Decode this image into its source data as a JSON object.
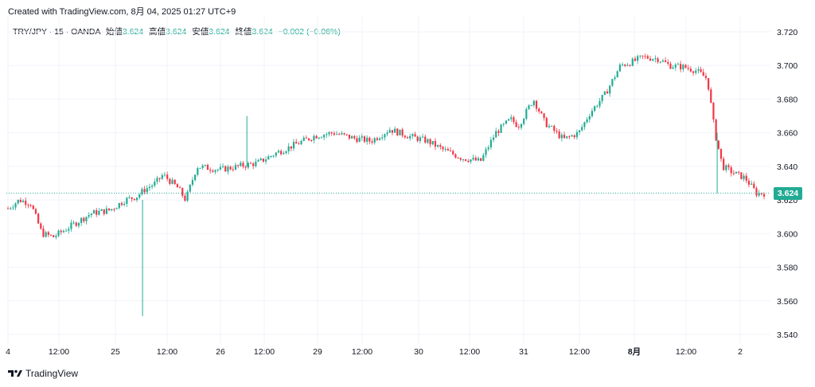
{
  "header": {
    "created_text": "Created with TradingView.com, 8月 04, 2025 01:27 UTC+9"
  },
  "legend": {
    "symbol": "TRY/JPY · 15 · OANDA",
    "open_label": "始値",
    "open_value": "3.624",
    "high_label": "高値",
    "high_value": "3.624",
    "low_label": "安値",
    "low_value": "3.624",
    "close_label": "終値",
    "close_value": "3.624",
    "change": "−0.002 (−0.06%)"
  },
  "last_price_label": "3.624",
  "footer": {
    "brand": "TradingView"
  },
  "colors": {
    "up": "#22ab94",
    "down": "#f23645",
    "grid": "#f0f3fa",
    "text": "#131722",
    "last_line": "#22ab94"
  },
  "chart_data": {
    "type": "candlestick",
    "y_ticks": [
      "3.720",
      "3.700",
      "3.680",
      "3.660",
      "3.640",
      "3.620",
      "3.600",
      "3.580",
      "3.560",
      "3.540"
    ],
    "x_ticks": [
      "4",
      "12:00",
      "25",
      "12:00",
      "26",
      "12:00",
      "29",
      "12:00",
      "30",
      "12:00",
      "31",
      "12:00",
      "8月",
      "12:00",
      "2"
    ],
    "ylim": [
      3.54,
      3.72
    ],
    "last_price": 3.624,
    "path_points": [
      [
        0,
        3.615
      ],
      [
        0.015,
        3.62
      ],
      [
        0.03,
        3.618
      ],
      [
        0.045,
        3.6
      ],
      [
        0.06,
        3.598
      ],
      [
        0.085,
        3.605
      ],
      [
        0.11,
        3.612
      ],
      [
        0.135,
        3.614
      ],
      [
        0.155,
        3.62
      ],
      [
        0.17,
        3.622
      ],
      [
        0.18,
        3.626
      ],
      [
        0.195,
        3.63
      ],
      [
        0.205,
        3.635
      ],
      [
        0.225,
        3.627
      ],
      [
        0.235,
        3.62
      ],
      [
        0.25,
        3.64
      ],
      [
        0.28,
        3.638
      ],
      [
        0.305,
        3.64
      ],
      [
        0.33,
        3.642
      ],
      [
        0.355,
        3.648
      ],
      [
        0.38,
        3.653
      ],
      [
        0.405,
        3.658
      ],
      [
        0.43,
        3.66
      ],
      [
        0.455,
        3.657
      ],
      [
        0.48,
        3.655
      ],
      [
        0.505,
        3.662
      ],
      [
        0.53,
        3.658
      ],
      [
        0.555,
        3.655
      ],
      [
        0.575,
        3.65
      ],
      [
        0.6,
        3.645
      ],
      [
        0.625,
        3.643
      ],
      [
        0.645,
        3.66
      ],
      [
        0.665,
        3.668
      ],
      [
        0.675,
        3.664
      ],
      [
        0.695,
        3.68
      ],
      [
        0.71,
        3.666
      ],
      [
        0.735,
        3.656
      ],
      [
        0.755,
        3.66
      ],
      [
        0.77,
        3.672
      ],
      [
        0.79,
        3.683
      ],
      [
        0.81,
        3.7
      ],
      [
        0.825,
        3.702
      ],
      [
        0.84,
        3.705
      ],
      [
        0.86,
        3.704
      ],
      [
        0.875,
        3.7
      ],
      [
        0.895,
        3.699
      ],
      [
        0.91,
        3.697
      ],
      [
        0.925,
        3.692
      ],
      [
        0.935,
        3.66
      ],
      [
        0.945,
        3.64
      ],
      [
        0.96,
        3.636
      ],
      [
        0.975,
        3.633
      ],
      [
        0.99,
        3.624
      ],
      [
        1.0,
        3.624
      ]
    ],
    "spikes": [
      {
        "x_frac": 0.178,
        "high": 3.62,
        "low": 3.551
      },
      {
        "x_frac": 0.316,
        "high": 3.67,
        "low": 3.64
      },
      {
        "x_frac": 0.938,
        "high": 3.66,
        "low": 3.624
      }
    ]
  }
}
